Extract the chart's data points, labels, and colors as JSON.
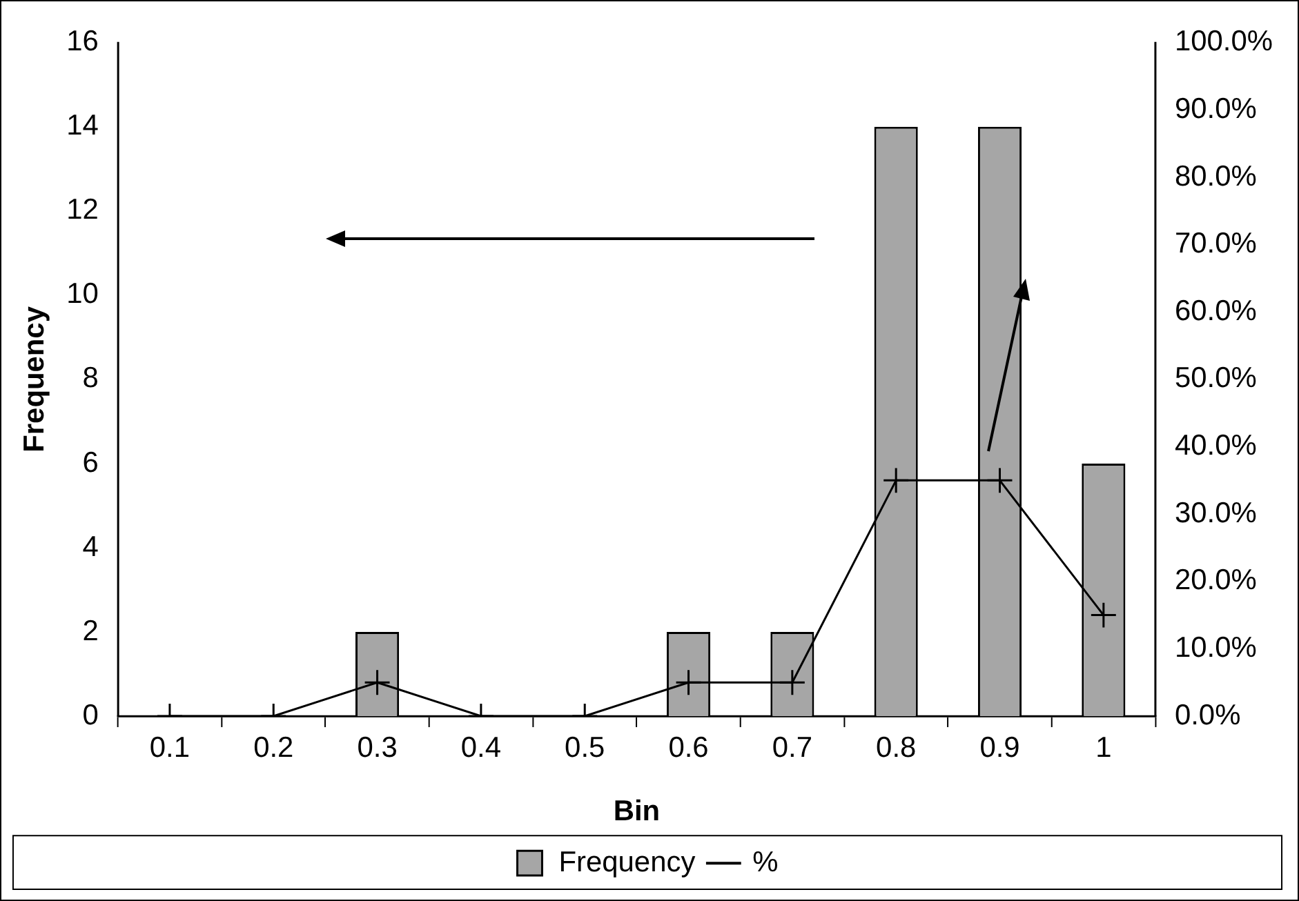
{
  "chart_data": {
    "type": "bar",
    "xlabel": "Bin",
    "ylabel": "Frequency",
    "categories": [
      "0.1",
      "0.2",
      "0.3",
      "0.4",
      "0.5",
      "0.6",
      "0.7",
      "0.8",
      "0.9",
      "1"
    ],
    "series": [
      {
        "name": "Frequency",
        "color": "#a6a6a6",
        "values": [
          0,
          0,
          2,
          0,
          0,
          2,
          2,
          14,
          14,
          6
        ]
      },
      {
        "name": "%",
        "type": "line",
        "axis": "y2",
        "color": "#000000",
        "marker": "cross",
        "values": [
          0,
          0,
          5,
          0,
          0,
          5,
          5,
          35,
          35,
          15
        ]
      }
    ],
    "ylim": [
      0,
      16
    ],
    "yticks": [
      0,
      2,
      4,
      6,
      8,
      10,
      12,
      14,
      16
    ],
    "y2lim": [
      0,
      100
    ],
    "y2ticks": [
      {
        "value": 0,
        "label": "0.0%"
      },
      {
        "value": 10,
        "label": "10.0%"
      },
      {
        "value": 20,
        "label": "20.0%"
      },
      {
        "value": 30,
        "label": "30.0%"
      },
      {
        "value": 40,
        "label": "40.0%"
      },
      {
        "value": 50,
        "label": "50.0%"
      },
      {
        "value": 60,
        "label": "60.0%"
      },
      {
        "value": 70,
        "label": "70.0%"
      },
      {
        "value": 80,
        "label": "80.0%"
      },
      {
        "value": 90,
        "label": "90.0%"
      },
      {
        "value": 100,
        "label": "100.0%"
      }
    ],
    "grid": false,
    "legend": "bottom"
  }
}
